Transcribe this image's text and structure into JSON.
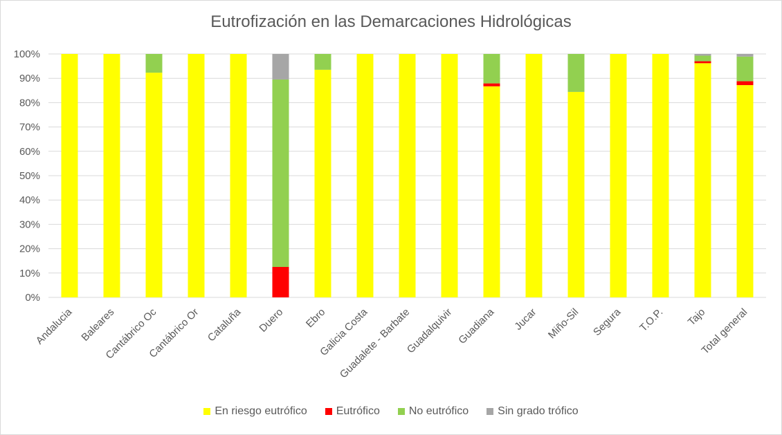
{
  "chart_data": {
    "type": "bar",
    "stacked": true,
    "title": "Eutrofización en las Demarcaciones Hidrológicas",
    "categories": [
      "Andalucia",
      "Baleares",
      "Cantábrico Oc",
      "Cantábrico Or",
      "Cataluña",
      "Duero",
      "Ebro",
      "Galicia Costa",
      "Guadalete - Barbate",
      "Guadalquivir",
      "Guadiana",
      "Jucar",
      "Miño-Sil",
      "Segura",
      "T.O.P.",
      "Tajo",
      "Total general"
    ],
    "yticks": [
      "0%",
      "10%",
      "20%",
      "30%",
      "40%",
      "50%",
      "60%",
      "70%",
      "80%",
      "90%",
      "100%"
    ],
    "ylim": [
      0,
      100
    ],
    "legend_position": "bottom",
    "series": [
      {
        "name": "En riesgo eutrófico",
        "color": "#ffff00",
        "values": [
          100,
          100,
          92.3,
          100,
          100,
          0,
          93.5,
          100,
          100,
          100,
          86.7,
          100,
          84.4,
          100,
          100,
          96.2,
          87.2
        ]
      },
      {
        "name": "Eutrófico",
        "color": "#ff0000",
        "values": [
          0,
          0,
          0,
          0,
          0,
          12.5,
          0,
          0,
          0,
          0,
          1.2,
          0,
          0,
          0,
          0,
          0.8,
          1.6
        ]
      },
      {
        "name": "No eutrófico",
        "color": "#92d050",
        "values": [
          0,
          0,
          7.7,
          0,
          0,
          77.0,
          6.5,
          0,
          0,
          0,
          12.1,
          0,
          15.6,
          0,
          0,
          2.3,
          10.1
        ]
      },
      {
        "name": "Sin grado trófico",
        "color": "#a6a6a6",
        "values": [
          0,
          0,
          0,
          0,
          0,
          10.5,
          0,
          0,
          0,
          0,
          0,
          0,
          0,
          0,
          0,
          0.7,
          1.1
        ]
      }
    ]
  }
}
